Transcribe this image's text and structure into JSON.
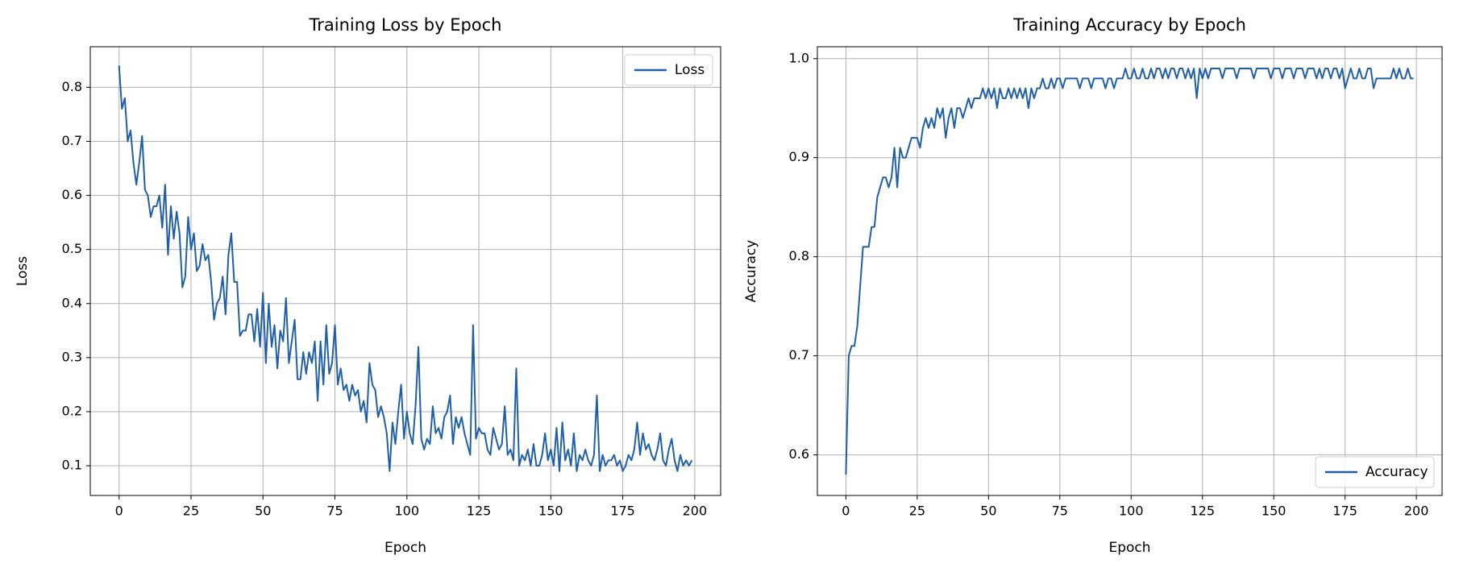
{
  "chart_data": [
    {
      "type": "line",
      "title": "Training Loss by Epoch",
      "xlabel": "Epoch",
      "ylabel": "Loss",
      "x": [
        0,
        1,
        2,
        3,
        4,
        5,
        6,
        7,
        8,
        9,
        10,
        11,
        12,
        13,
        14,
        15,
        16,
        17,
        18,
        19,
        20,
        21,
        22,
        23,
        24,
        25,
        26,
        27,
        28,
        29,
        30,
        31,
        32,
        33,
        34,
        35,
        36,
        37,
        38,
        39,
        40,
        41,
        42,
        43,
        44,
        45,
        46,
        47,
        48,
        49,
        50,
        51,
        52,
        53,
        54,
        55,
        56,
        57,
        58,
        59,
        60,
        61,
        62,
        63,
        64,
        65,
        66,
        67,
        68,
        69,
        70,
        71,
        72,
        73,
        74,
        75,
        76,
        77,
        78,
        79,
        80,
        81,
        82,
        83,
        84,
        85,
        86,
        87,
        88,
        89,
        90,
        91,
        92,
        93,
        94,
        95,
        96,
        97,
        98,
        99,
        100,
        101,
        102,
        103,
        104,
        105,
        106,
        107,
        108,
        109,
        110,
        111,
        112,
        113,
        114,
        115,
        116,
        117,
        118,
        119,
        120,
        121,
        122,
        123,
        124,
        125,
        126,
        127,
        128,
        129,
        130,
        131,
        132,
        133,
        134,
        135,
        136,
        137,
        138,
        139,
        140,
        141,
        142,
        143,
        144,
        145,
        146,
        147,
        148,
        149,
        150,
        151,
        152,
        153,
        154,
        155,
        156,
        157,
        158,
        159,
        160,
        161,
        162,
        163,
        164,
        165,
        166,
        167,
        168,
        169,
        170,
        171,
        172,
        173,
        174,
        175,
        176,
        177,
        178,
        179,
        180,
        181,
        182,
        183,
        184,
        185,
        186,
        187,
        188,
        189,
        190,
        191,
        192,
        193,
        194,
        195,
        196,
        197,
        198,
        199
      ],
      "series": [
        {
          "name": "Loss",
          "color": "#1f5fa8",
          "values": [
            0.84,
            0.76,
            0.78,
            0.7,
            0.72,
            0.66,
            0.62,
            0.66,
            0.71,
            0.61,
            0.6,
            0.56,
            0.58,
            0.58,
            0.6,
            0.54,
            0.62,
            0.49,
            0.58,
            0.52,
            0.57,
            0.53,
            0.43,
            0.45,
            0.56,
            0.5,
            0.53,
            0.46,
            0.47,
            0.51,
            0.48,
            0.49,
            0.44,
            0.37,
            0.4,
            0.41,
            0.45,
            0.38,
            0.49,
            0.53,
            0.44,
            0.44,
            0.34,
            0.35,
            0.35,
            0.38,
            0.38,
            0.33,
            0.39,
            0.32,
            0.42,
            0.29,
            0.4,
            0.32,
            0.36,
            0.28,
            0.35,
            0.33,
            0.41,
            0.29,
            0.33,
            0.37,
            0.26,
            0.26,
            0.31,
            0.27,
            0.31,
            0.29,
            0.33,
            0.22,
            0.33,
            0.25,
            0.36,
            0.27,
            0.29,
            0.36,
            0.25,
            0.28,
            0.24,
            0.25,
            0.22,
            0.25,
            0.23,
            0.24,
            0.2,
            0.22,
            0.18,
            0.29,
            0.25,
            0.24,
            0.19,
            0.21,
            0.19,
            0.16,
            0.09,
            0.18,
            0.14,
            0.2,
            0.25,
            0.15,
            0.2,
            0.16,
            0.14,
            0.21,
            0.32,
            0.15,
            0.13,
            0.15,
            0.14,
            0.21,
            0.16,
            0.17,
            0.15,
            0.19,
            0.2,
            0.23,
            0.14,
            0.19,
            0.17,
            0.19,
            0.16,
            0.14,
            0.12,
            0.36,
            0.15,
            0.17,
            0.16,
            0.16,
            0.13,
            0.12,
            0.17,
            0.15,
            0.13,
            0.14,
            0.21,
            0.12,
            0.13,
            0.11,
            0.28,
            0.1,
            0.12,
            0.11,
            0.13,
            0.1,
            0.14,
            0.1,
            0.1,
            0.12,
            0.16,
            0.11,
            0.13,
            0.1,
            0.17,
            0.09,
            0.18,
            0.11,
            0.13,
            0.1,
            0.16,
            0.09,
            0.12,
            0.11,
            0.13,
            0.11,
            0.1,
            0.12,
            0.23,
            0.09,
            0.12,
            0.1,
            0.11,
            0.11,
            0.12,
            0.1,
            0.11,
            0.09,
            0.1,
            0.12,
            0.11,
            0.13,
            0.18,
            0.12,
            0.16,
            0.13,
            0.14,
            0.12,
            0.11,
            0.13,
            0.16,
            0.11,
            0.1,
            0.13,
            0.15,
            0.11,
            0.09,
            0.12,
            0.1,
            0.11,
            0.1,
            0.11
          ]
        }
      ],
      "xlim": [
        -10,
        209
      ],
      "xticks": [
        0,
        25,
        50,
        75,
        100,
        125,
        150,
        175,
        200
      ],
      "ylim": [
        0.045,
        0.875
      ],
      "yticks": [
        0.1,
        0.2,
        0.3,
        0.4,
        0.5,
        0.6,
        0.7,
        0.8
      ],
      "grid": true,
      "legend": "upper right"
    },
    {
      "type": "line",
      "title": "Training Accuracy by Epoch",
      "xlabel": "Epoch",
      "ylabel": "Accuracy",
      "x": [
        0,
        1,
        2,
        3,
        4,
        5,
        6,
        7,
        8,
        9,
        10,
        11,
        12,
        13,
        14,
        15,
        16,
        17,
        18,
        19,
        20,
        21,
        22,
        23,
        24,
        25,
        26,
        27,
        28,
        29,
        30,
        31,
        32,
        33,
        34,
        35,
        36,
        37,
        38,
        39,
        40,
        41,
        42,
        43,
        44,
        45,
        46,
        47,
        48,
        49,
        50,
        51,
        52,
        53,
        54,
        55,
        56,
        57,
        58,
        59,
        60,
        61,
        62,
        63,
        64,
        65,
        66,
        67,
        68,
        69,
        70,
        71,
        72,
        73,
        74,
        75,
        76,
        77,
        78,
        79,
        80,
        81,
        82,
        83,
        84,
        85,
        86,
        87,
        88,
        89,
        90,
        91,
        92,
        93,
        94,
        95,
        96,
        97,
        98,
        99,
        100,
        101,
        102,
        103,
        104,
        105,
        106,
        107,
        108,
        109,
        110,
        111,
        112,
        113,
        114,
        115,
        116,
        117,
        118,
        119,
        120,
        121,
        122,
        123,
        124,
        125,
        126,
        127,
        128,
        129,
        130,
        131,
        132,
        133,
        134,
        135,
        136,
        137,
        138,
        139,
        140,
        141,
        142,
        143,
        144,
        145,
        146,
        147,
        148,
        149,
        150,
        151,
        152,
        153,
        154,
        155,
        156,
        157,
        158,
        159,
        160,
        161,
        162,
        163,
        164,
        165,
        166,
        167,
        168,
        169,
        170,
        171,
        172,
        173,
        174,
        175,
        176,
        177,
        178,
        179,
        180,
        181,
        182,
        183,
        184,
        185,
        186,
        187,
        188,
        189,
        190,
        191,
        192,
        193,
        194,
        195,
        196,
        197,
        198,
        199
      ],
      "series": [
        {
          "name": "Accuracy",
          "color": "#1f5fa8",
          "values": [
            0.58,
            0.7,
            0.71,
            0.71,
            0.73,
            0.77,
            0.81,
            0.81,
            0.81,
            0.83,
            0.83,
            0.86,
            0.87,
            0.88,
            0.88,
            0.87,
            0.88,
            0.91,
            0.87,
            0.91,
            0.9,
            0.9,
            0.91,
            0.92,
            0.92,
            0.92,
            0.91,
            0.93,
            0.94,
            0.93,
            0.94,
            0.93,
            0.95,
            0.94,
            0.95,
            0.92,
            0.94,
            0.95,
            0.93,
            0.95,
            0.95,
            0.94,
            0.95,
            0.96,
            0.95,
            0.96,
            0.96,
            0.96,
            0.97,
            0.96,
            0.97,
            0.96,
            0.97,
            0.95,
            0.97,
            0.96,
            0.96,
            0.97,
            0.96,
            0.97,
            0.96,
            0.97,
            0.96,
            0.97,
            0.95,
            0.97,
            0.96,
            0.97,
            0.97,
            0.98,
            0.97,
            0.97,
            0.98,
            0.97,
            0.98,
            0.98,
            0.97,
            0.98,
            0.98,
            0.98,
            0.98,
            0.98,
            0.97,
            0.98,
            0.98,
            0.98,
            0.97,
            0.98,
            0.98,
            0.98,
            0.98,
            0.97,
            0.98,
            0.98,
            0.97,
            0.98,
            0.98,
            0.98,
            0.99,
            0.98,
            0.98,
            0.99,
            0.98,
            0.98,
            0.99,
            0.98,
            0.98,
            0.99,
            0.98,
            0.99,
            0.99,
            0.98,
            0.99,
            0.98,
            0.99,
            0.99,
            0.98,
            0.99,
            0.99,
            0.98,
            0.99,
            0.98,
            0.99,
            0.96,
            0.99,
            0.98,
            0.99,
            0.98,
            0.99,
            0.99,
            0.99,
            0.99,
            0.98,
            0.99,
            0.99,
            0.99,
            0.99,
            0.98,
            0.99,
            0.99,
            0.99,
            0.99,
            0.99,
            0.98,
            0.99,
            0.99,
            0.99,
            0.99,
            0.99,
            0.98,
            0.99,
            0.99,
            0.99,
            0.98,
            0.99,
            0.99,
            0.99,
            0.98,
            0.99,
            0.99,
            0.99,
            0.98,
            0.99,
            0.99,
            0.99,
            0.98,
            0.99,
            0.98,
            0.99,
            0.99,
            0.98,
            0.99,
            0.99,
            0.98,
            0.99,
            0.97,
            0.98,
            0.99,
            0.98,
            0.98,
            0.99,
            0.98,
            0.98,
            0.99,
            0.99,
            0.97,
            0.98,
            0.98,
            0.98,
            0.98,
            0.98,
            0.98,
            0.99,
            0.98,
            0.99,
            0.98,
            0.98,
            0.99,
            0.98,
            0.98
          ]
        }
      ],
      "xlim": [
        -10,
        209
      ],
      "xticks": [
        0,
        25,
        50,
        75,
        100,
        125,
        150,
        175,
        200
      ],
      "ylim": [
        0.559,
        1.012
      ],
      "yticks": [
        0.6,
        0.7,
        0.8,
        0.9,
        {
          "value": 1,
          "label": "1.0"
        }
      ],
      "grid": true,
      "legend": "lower right"
    }
  ]
}
